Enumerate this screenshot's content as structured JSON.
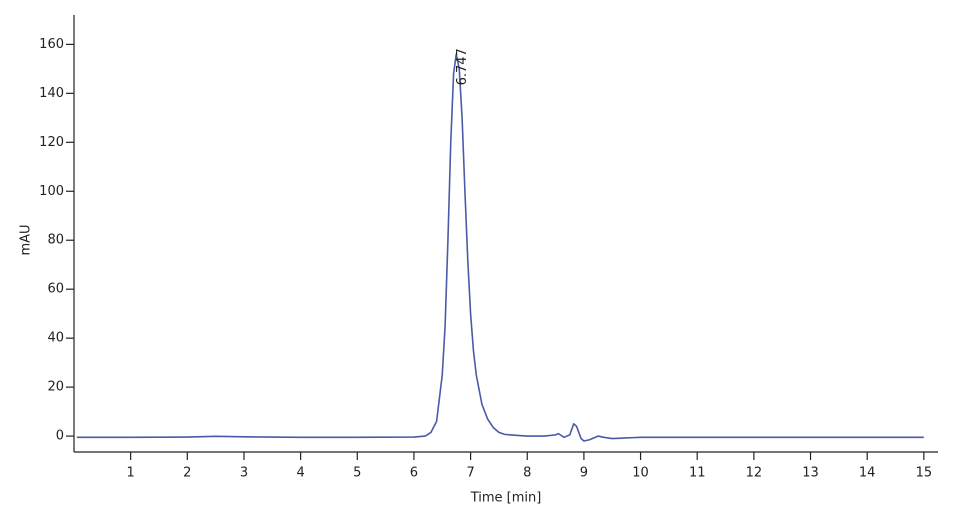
{
  "chart_data": {
    "type": "line",
    "x_label": "Time [min]",
    "y_label": "mAU",
    "annotation": "6.747",
    "color": "#4b5aa8",
    "x": [
      0.05,
      1,
      2,
      2.5,
      3,
      4,
      5,
      6,
      6.2,
      6.3,
      6.4,
      6.5,
      6.55,
      6.6,
      6.65,
      6.7,
      6.747,
      6.8,
      6.85,
      6.9,
      6.95,
      7.0,
      7.05,
      7.1,
      7.2,
      7.3,
      7.4,
      7.5,
      7.6,
      7.8,
      8.0,
      8.3,
      8.5,
      8.55,
      8.65,
      8.75,
      8.82,
      8.87,
      8.95,
      9.0,
      9.1,
      9.25,
      9.35,
      9.5,
      9.7,
      10,
      12,
      15
    ],
    "values": [
      -0.5,
      -0.5,
      -0.4,
      -0.1,
      -0.3,
      -0.5,
      -0.5,
      -0.4,
      0,
      1.5,
      6,
      25,
      45,
      80,
      120,
      148,
      156,
      150,
      130,
      100,
      72,
      50,
      35,
      25,
      13,
      7,
      3.5,
      1.5,
      0.7,
      0.3,
      0,
      0,
      0.5,
      1,
      -0.5,
      0.5,
      5,
      4,
      -1,
      -2,
      -1.5,
      0,
      -0.5,
      -1,
      -0.8,
      -0.5,
      -0.5,
      -0.5
    ],
    "xlim": [
      0,
      15.25
    ],
    "ylim": [
      -6.5,
      172
    ],
    "xticks": [
      1,
      2,
      3,
      4,
      5,
      6,
      7,
      8,
      9,
      10,
      11,
      12,
      13,
      14,
      15
    ],
    "yticks": [
      0,
      20,
      40,
      60,
      80,
      100,
      120,
      140,
      160
    ]
  }
}
